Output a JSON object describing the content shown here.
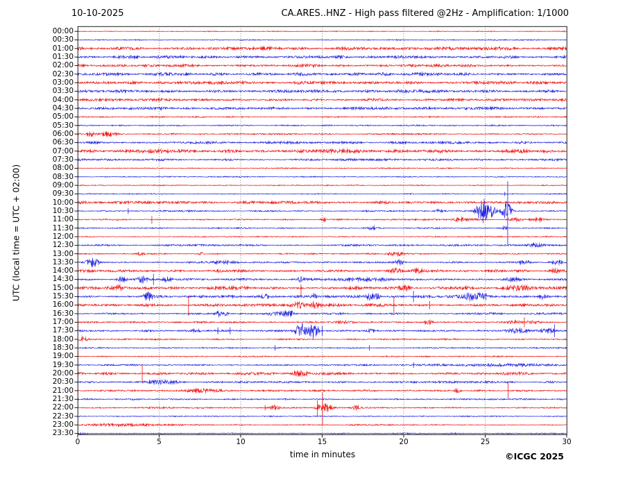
{
  "header": {
    "title_left": "10-10-2025",
    "title_right": "CA.ARES..HNZ - High pass filtered @2Hz - Amplification: 1/1000"
  },
  "axes": {
    "ylabel": "UTC (local time = UTC + 02:00)",
    "xlabel": "time in minutes",
    "x_ticks": [
      0,
      5,
      10,
      15,
      20,
      25,
      30
    ],
    "x_max_minutes": 30,
    "grid_minutes": [
      5,
      10,
      15,
      20,
      25
    ]
  },
  "footer": {
    "copyright": "©ICGC 2025"
  },
  "colors": {
    "trace_red": "#f00000",
    "trace_blue": "#1010e0",
    "grid": "#666666",
    "frame": "#000000",
    "background": "#ffffff"
  },
  "chart_data": {
    "type": "seismogram-helicorder",
    "title": "CA.ARES..HNZ - High pass filtered @2Hz - Amplification: 1/1000",
    "date": "10-10-2025",
    "minutes_per_row": 30,
    "x_range": [
      0,
      30
    ],
    "row_spacing_px": 12.327,
    "note": "48 half-hour traces, alternating red/blue; noise = background amplitude in px; events: burst(m=minute,a=amp px,w=width min), spike(m,up,down px)",
    "rows": [
      {
        "time": "00:00",
        "color": "red",
        "noise": 0.5,
        "events": []
      },
      {
        "time": "00:30",
        "color": "blue",
        "noise": 0.6,
        "events": []
      },
      {
        "time": "01:00",
        "color": "red",
        "noise": 1.7,
        "events": []
      },
      {
        "time": "01:30",
        "color": "blue",
        "noise": 1.5,
        "events": []
      },
      {
        "time": "02:00",
        "color": "red",
        "noise": 1.5,
        "events": []
      },
      {
        "time": "02:30",
        "color": "blue",
        "noise": 1.7,
        "events": []
      },
      {
        "time": "03:00",
        "color": "red",
        "noise": 1.7,
        "events": []
      },
      {
        "time": "03:30",
        "color": "blue",
        "noise": 1.5,
        "events": []
      },
      {
        "time": "04:00",
        "color": "red",
        "noise": 1.4,
        "events": []
      },
      {
        "time": "04:30",
        "color": "blue",
        "noise": 1.4,
        "events": []
      },
      {
        "time": "05:00",
        "color": "red",
        "noise": 0.7,
        "events": []
      },
      {
        "time": "05:30",
        "color": "blue",
        "noise": 0.7,
        "events": []
      },
      {
        "time": "06:00",
        "color": "red",
        "noise": 0.8,
        "events": [
          {
            "type": "burst",
            "m": 0.8,
            "a": 3,
            "w": 0.18
          },
          {
            "type": "burst",
            "m": 1.9,
            "a": 3,
            "w": 0.28
          }
        ]
      },
      {
        "time": "06:30",
        "color": "blue",
        "noise": 1.25,
        "events": []
      },
      {
        "time": "07:00",
        "color": "red",
        "noise": 2.0,
        "events": []
      },
      {
        "time": "07:30",
        "color": "blue",
        "noise": 1.15,
        "events": []
      },
      {
        "time": "08:00",
        "color": "red",
        "noise": 0.6,
        "events": []
      },
      {
        "time": "08:30",
        "color": "blue",
        "noise": 0.6,
        "events": []
      },
      {
        "time": "09:00",
        "color": "red",
        "noise": 0.6,
        "events": []
      },
      {
        "time": "09:30",
        "color": "blue",
        "noise": 0.6,
        "events": [
          {
            "type": "spike",
            "m": 26.2,
            "up": 3,
            "down": 3
          }
        ]
      },
      {
        "time": "10:00",
        "color": "red",
        "noise": 1.5,
        "events": []
      },
      {
        "time": "10:30",
        "color": "blue",
        "noise": 0.8,
        "events": [
          {
            "type": "spike",
            "m": 3.1,
            "up": 4,
            "down": 4
          },
          {
            "type": "burst",
            "m": 22.2,
            "a": 2.5,
            "w": 0.2
          },
          {
            "type": "burst",
            "m": 24.85,
            "a": 19,
            "w": 0.25
          },
          {
            "type": "burst",
            "m": 25.5,
            "a": 10,
            "w": 0.16
          },
          {
            "type": "burst",
            "m": 26.3,
            "a": 15,
            "w": 0.2
          },
          {
            "type": "spike",
            "m": 26.38,
            "up": 43,
            "down": 48
          }
        ]
      },
      {
        "time": "11:00",
        "color": "red",
        "noise": 0.8,
        "events": [
          {
            "type": "spike",
            "m": 4.55,
            "up": 5,
            "down": 6
          },
          {
            "type": "burst",
            "m": 15.1,
            "a": 2,
            "w": 0.12
          },
          {
            "type": "burst",
            "m": 23.4,
            "a": 2,
            "w": 0.35
          },
          {
            "type": "burst",
            "m": 26.8,
            "a": 2.2,
            "w": 0.25
          },
          {
            "type": "burst",
            "m": 28.2,
            "a": 2.5,
            "w": 0.3
          }
        ]
      },
      {
        "time": "11:30",
        "color": "blue",
        "noise": 0.7,
        "events": [
          {
            "type": "burst",
            "m": 18.1,
            "a": 2.2,
            "w": 0.2
          },
          {
            "type": "burst",
            "m": 26.2,
            "a": 2,
            "w": 0.15
          }
        ]
      },
      {
        "time": "12:00",
        "color": "red",
        "noise": 0.6,
        "events": []
      },
      {
        "time": "12:30",
        "color": "blue",
        "noise": 1.0,
        "events": [
          {
            "type": "burst",
            "m": 28.1,
            "a": 2,
            "w": 0.25
          }
        ]
      },
      {
        "time": "13:00",
        "color": "red",
        "noise": 0.7,
        "events": [
          {
            "type": "burst",
            "m": 3.9,
            "a": 2.8,
            "w": 0.12
          },
          {
            "type": "burst",
            "m": 7.6,
            "a": 2.2,
            "w": 0.12
          },
          {
            "type": "burst",
            "m": 19.5,
            "a": 3,
            "w": 0.3
          }
        ]
      },
      {
        "time": "13:30",
        "color": "blue",
        "noise": 0.85,
        "events": [
          {
            "type": "burst",
            "m": 0.9,
            "a": 6,
            "w": 0.25
          },
          {
            "type": "burst",
            "m": 8.8,
            "a": 2,
            "w": 0.6
          },
          {
            "type": "burst",
            "m": 19.7,
            "a": 3.2,
            "w": 0.22
          },
          {
            "type": "burst",
            "m": 27.4,
            "a": 2.6,
            "w": 0.3
          },
          {
            "type": "burst",
            "m": 29.4,
            "a": 2.6,
            "w": 0.25
          }
        ]
      },
      {
        "time": "14:00",
        "color": "red",
        "noise": 1.35,
        "events": [
          {
            "type": "burst",
            "m": 19.5,
            "a": 2.6,
            "w": 0.25
          },
          {
            "type": "burst",
            "m": 20.8,
            "a": 2.6,
            "w": 0.3
          },
          {
            "type": "burst",
            "m": 29.2,
            "a": 2.5,
            "w": 0.2
          }
        ]
      },
      {
        "time": "14:30",
        "color": "blue",
        "noise": 1.15,
        "events": [
          {
            "type": "burst",
            "m": 2.7,
            "a": 3.5,
            "w": 0.2
          },
          {
            "type": "burst",
            "m": 3.95,
            "a": 4.5,
            "w": 0.18
          },
          {
            "type": "spike",
            "m": 4.65,
            "up": 8,
            "down": 8
          },
          {
            "type": "burst",
            "m": 5.5,
            "a": 3,
            "w": 0.2
          },
          {
            "type": "burst",
            "m": 13.7,
            "a": 3,
            "w": 0.18
          },
          {
            "type": "burst",
            "m": 17.6,
            "a": 1.8,
            "w": 0.9
          },
          {
            "type": "burst",
            "m": 26.6,
            "a": 2.5,
            "w": 0.35
          }
        ]
      },
      {
        "time": "15:00",
        "color": "red",
        "noise": 1.6,
        "events": [
          {
            "type": "burst",
            "m": 2.6,
            "a": 2.5,
            "w": 0.2
          },
          {
            "type": "spike",
            "m": 13.7,
            "up": 5,
            "down": 14
          },
          {
            "type": "burst",
            "m": 20.1,
            "a": 2.5,
            "w": 0.25
          },
          {
            "type": "burst",
            "m": 27.2,
            "a": 2,
            "w": 0.6
          }
        ]
      },
      {
        "time": "15:30",
        "color": "blue",
        "noise": 1.35,
        "events": [
          {
            "type": "burst",
            "m": 4.3,
            "a": 6,
            "w": 0.2
          },
          {
            "type": "burst",
            "m": 11.5,
            "a": 3,
            "w": 0.12
          },
          {
            "type": "burst",
            "m": 14.5,
            "a": 3.5,
            "w": 0.12
          },
          {
            "type": "burst",
            "m": 17.95,
            "a": 4.5,
            "w": 0.14
          },
          {
            "type": "burst",
            "m": 18.35,
            "a": 4,
            "w": 0.12
          },
          {
            "type": "spike",
            "m": 20.6,
            "up": 8,
            "down": 8
          },
          {
            "type": "burst",
            "m": 24.35,
            "a": 5,
            "w": 0.5
          },
          {
            "type": "spike",
            "m": 25.05,
            "up": 5,
            "down": 5
          },
          {
            "type": "burst",
            "m": 28.5,
            "a": 3.5,
            "w": 0.18
          }
        ]
      },
      {
        "time": "16:00",
        "color": "red",
        "noise": 1.6,
        "events": [
          {
            "type": "spike",
            "m": 6.8,
            "up": 13,
            "down": 15
          },
          {
            "type": "burst",
            "m": 13.5,
            "a": 3,
            "w": 0.3
          },
          {
            "type": "burst",
            "m": 14.5,
            "a": 2.5,
            "w": 0.2
          },
          {
            "type": "spike",
            "m": 19.4,
            "up": 12,
            "down": 12
          },
          {
            "type": "spike",
            "m": 21.6,
            "up": 6,
            "down": 6
          }
        ]
      },
      {
        "time": "16:30",
        "color": "blue",
        "noise": 1.0,
        "events": [
          {
            "type": "burst",
            "m": 8.65,
            "a": 3,
            "w": 0.14
          },
          {
            "type": "burst",
            "m": 9.05,
            "a": 2.5,
            "w": 0.12
          },
          {
            "type": "burst",
            "m": 12.0,
            "a": 2.5,
            "w": 0.3
          },
          {
            "type": "burst",
            "m": 12.8,
            "a": 3,
            "w": 0.3
          },
          {
            "type": "burst",
            "m": 13.15,
            "a": 2.5,
            "w": 0.12
          }
        ]
      },
      {
        "time": "17:00",
        "color": "red",
        "noise": 0.8,
        "events": [
          {
            "type": "burst",
            "m": 16.3,
            "a": 1.6,
            "w": 0.3
          },
          {
            "type": "burst",
            "m": 21.5,
            "a": 2,
            "w": 0.2
          },
          {
            "type": "burst",
            "m": 26.8,
            "a": 2,
            "w": 0.35
          },
          {
            "type": "spike",
            "m": 27.4,
            "up": 7,
            "down": 7
          },
          {
            "type": "burst",
            "m": 27.9,
            "a": 2,
            "w": 0.3
          }
        ]
      },
      {
        "time": "17:30",
        "color": "blue",
        "noise": 1.0,
        "events": [
          {
            "type": "burst",
            "m": 7.3,
            "a": 2,
            "w": 0.2
          },
          {
            "type": "spike",
            "m": 8.6,
            "up": 5,
            "down": 5
          },
          {
            "type": "spike",
            "m": 9.35,
            "up": 5,
            "down": 5
          },
          {
            "type": "burst",
            "m": 13.7,
            "a": 11,
            "w": 0.22
          },
          {
            "type": "burst",
            "m": 14.45,
            "a": 11,
            "w": 0.22
          },
          {
            "type": "spike",
            "m": 15.0,
            "up": 7,
            "down": 7
          },
          {
            "type": "burst",
            "m": 18.0,
            "a": 2,
            "w": 0.15
          },
          {
            "type": "burst",
            "m": 27.0,
            "a": 2.5,
            "w": 0.45
          },
          {
            "type": "burst",
            "m": 28.8,
            "a": 2.5,
            "w": 0.3
          },
          {
            "type": "spike",
            "m": 29.25,
            "up": 9,
            "down": 9
          }
        ]
      },
      {
        "time": "18:00",
        "color": "red",
        "noise": 0.8,
        "events": [
          {
            "type": "burst",
            "m": 0.3,
            "a": 3,
            "w": 0.18
          }
        ]
      },
      {
        "time": "18:30",
        "color": "blue",
        "noise": 0.7,
        "events": [
          {
            "type": "spike",
            "m": 12.1,
            "up": 4,
            "down": 4
          },
          {
            "type": "spike",
            "m": 17.9,
            "up": 4,
            "down": 4
          }
        ]
      },
      {
        "time": "19:00",
        "color": "red",
        "noise": 0.6,
        "events": []
      },
      {
        "time": "19:30",
        "color": "blue",
        "noise": 0.75,
        "events": [
          {
            "type": "spike",
            "m": 20.6,
            "up": 4,
            "down": 4
          },
          {
            "type": "burst",
            "m": 26.0,
            "a": 1.2,
            "w": 3.0
          }
        ]
      },
      {
        "time": "20:00",
        "color": "red",
        "noise": 1.45,
        "events": [
          {
            "type": "spike",
            "m": 3.96,
            "up": 13,
            "down": 13
          },
          {
            "type": "burst",
            "m": 13.6,
            "a": 2.5,
            "w": 0.3
          }
        ]
      },
      {
        "time": "20:30",
        "color": "blue",
        "noise": 1.05,
        "events": [
          {
            "type": "burst",
            "m": 5.2,
            "a": 2,
            "w": 0.6
          }
        ]
      },
      {
        "time": "21:00",
        "color": "red",
        "noise": 0.95,
        "events": [
          {
            "type": "burst",
            "m": 8.0,
            "a": 1.8,
            "w": 0.9
          },
          {
            "type": "burst",
            "m": 23.3,
            "a": 3,
            "w": 0.12
          },
          {
            "type": "spike",
            "m": 26.4,
            "up": 11,
            "down": 11
          }
        ]
      },
      {
        "time": "21:30",
        "color": "blue",
        "noise": 0.85,
        "events": []
      },
      {
        "time": "22:00",
        "color": "red",
        "noise": 0.8,
        "events": [
          {
            "type": "spike",
            "m": 11.5,
            "up": 4,
            "down": 4
          },
          {
            "type": "burst",
            "m": 12.1,
            "a": 3,
            "w": 0.18
          },
          {
            "type": "spike",
            "m": 14.7,
            "up": 11,
            "down": 12
          },
          {
            "type": "spike",
            "m": 15.02,
            "up": 22,
            "down": 25
          },
          {
            "type": "burst",
            "m": 15.1,
            "a": 6,
            "w": 0.3
          },
          {
            "type": "burst",
            "m": 17.1,
            "a": 3.5,
            "w": 0.16
          }
        ]
      },
      {
        "time": "22:30",
        "color": "blue",
        "noise": 0.6,
        "events": []
      },
      {
        "time": "23:00",
        "color": "red",
        "noise": 0.7,
        "events": [
          {
            "type": "burst",
            "m": 3.2,
            "a": 1.3,
            "w": 1.8
          }
        ]
      },
      {
        "time": "23:30",
        "color": "blue",
        "noise": 0.6,
        "events": [
          {
            "type": "burst",
            "m": 0.3,
            "a": 1.5,
            "w": 0.18
          }
        ]
      }
    ]
  }
}
